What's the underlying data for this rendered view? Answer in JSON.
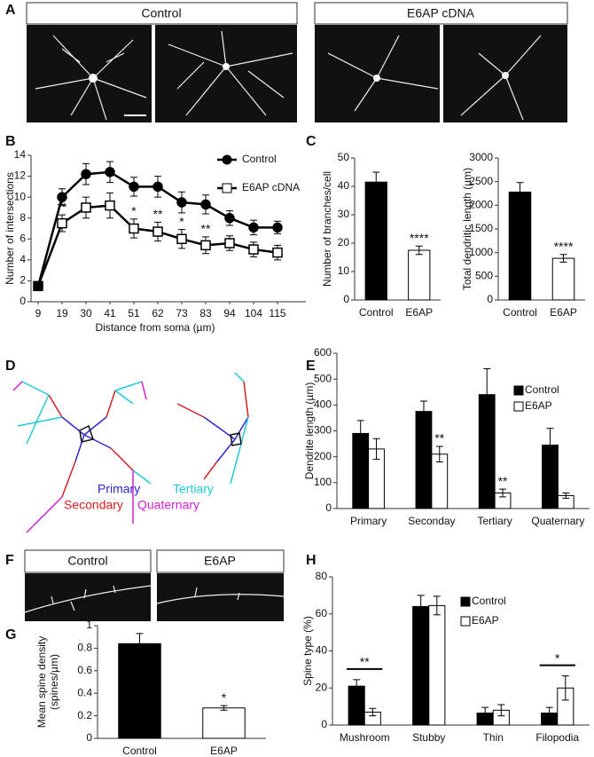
{
  "figure": {
    "panel_labels": [
      "A",
      "B",
      "C",
      "D",
      "E",
      "F",
      "G",
      "H"
    ],
    "a_headers": [
      "Control",
      "E6AP cDNA"
    ],
    "f_headers": [
      "Control",
      "E6AP"
    ],
    "d_legend": [
      {
        "label": "Primary",
        "color": "#2a2ad0"
      },
      {
        "label": "Tertiary",
        "color": "#20c8d8"
      },
      {
        "label": "Secondary",
        "color": "#d42020"
      },
      {
        "label": "Quaternary",
        "color": "#d020d0"
      }
    ]
  },
  "chart_data": [
    {
      "type": "line",
      "ylabel": "Number of intersections",
      "xlabel": "Distance from soma (µm)",
      "categories": [
        "9",
        "19",
        "30",
        "41",
        "51",
        "62",
        "73",
        "83",
        "94",
        "104",
        "115"
      ],
      "ylim": [
        0,
        14
      ],
      "yticks": [
        0,
        2,
        4,
        6,
        8,
        10,
        12,
        14
      ],
      "line_color": "#000000",
      "legend": true,
      "series": [
        {
          "name": "Control",
          "color": "#000000",
          "marker": "circle",
          "values": [
            1.5,
            10,
            12.2,
            12.4,
            11,
            11,
            9.5,
            9.3,
            8,
            7.1,
            7.1
          ],
          "errors": [
            0.4,
            0.8,
            1,
            1,
            0.9,
            1,
            1,
            0.9,
            0.7,
            0.7,
            0.6
          ],
          "significance": [
            null,
            null,
            null,
            null,
            null,
            null,
            null,
            null,
            null,
            null,
            null
          ]
        },
        {
          "name": "E6AP cDNA",
          "color": "#ffffff",
          "marker": "square",
          "values": [
            1.5,
            7.5,
            9,
            9.2,
            7,
            6.7,
            6,
            5.4,
            5.6,
            5,
            4.7
          ],
          "errors": [
            0.4,
            0.8,
            1,
            1.2,
            0.9,
            0.9,
            0.9,
            0.8,
            0.7,
            0.7,
            0.7
          ],
          "significance": [
            null,
            "**",
            null,
            null,
            "*",
            "**",
            "*",
            "**",
            null,
            null,
            null
          ]
        }
      ]
    },
    {
      "type": "bar",
      "ylabel": "Number of branches/cell",
      "categories": [
        "Control",
        "E6AP"
      ],
      "ylim": [
        0,
        50
      ],
      "yticks": [
        0,
        10,
        20,
        30,
        40,
        50
      ],
      "values": [
        41.5,
        17.5
      ],
      "errors": [
        3.5,
        1.5
      ],
      "colors": [
        "#000000",
        "#ffffff"
      ],
      "significance": [
        null,
        "****"
      ]
    },
    {
      "type": "bar",
      "ylabel": "Total dendritic length (µm)",
      "categories": [
        "Control",
        "E6AP"
      ],
      "ylim": [
        0,
        3000
      ],
      "yticks": [
        0,
        500,
        1000,
        1500,
        2000,
        2500,
        3000
      ],
      "values": [
        2280,
        880
      ],
      "errors": [
        200,
        80
      ],
      "colors": [
        "#000000",
        "#ffffff"
      ],
      "significance": [
        null,
        "****"
      ]
    },
    {
      "type": "bar",
      "ylabel": "Dendrite length (µm)",
      "categories": [
        "Primary",
        "Seconday",
        "Tertiary",
        "Quaternary"
      ],
      "ylim": [
        0,
        600
      ],
      "yticks": [
        0,
        100,
        200,
        300,
        400,
        500,
        600
      ],
      "legend": true,
      "series": [
        {
          "name": "Control",
          "color": "#000000",
          "values": [
            290,
            375,
            440,
            245
          ],
          "errors": [
            50,
            40,
            100,
            65
          ],
          "significance": [
            null,
            null,
            null,
            null
          ]
        },
        {
          "name": "E6AP",
          "color": "#ffffff",
          "values": [
            230,
            210,
            60,
            50
          ],
          "errors": [
            40,
            30,
            15,
            10
          ],
          "significance": [
            null,
            "**",
            "**",
            null
          ]
        }
      ]
    },
    {
      "type": "bar",
      "ylabel": [
        "Mean spine density",
        "(spines/µm)"
      ],
      "categories": [
        "Control",
        "E6AP"
      ],
      "ylim": [
        0,
        1
      ],
      "yticks": [
        0,
        0.2,
        0.4,
        0.6,
        0.8,
        1
      ],
      "values": [
        0.84,
        0.27
      ],
      "errors": [
        0.09,
        0.02
      ],
      "colors": [
        "#000000",
        "#ffffff"
      ],
      "significance": [
        null,
        "*"
      ]
    },
    {
      "type": "bar",
      "ylabel": "Spine type (%)",
      "categories": [
        "Mushroom",
        "Stubby",
        "Thin",
        "Filopodia"
      ],
      "ylim": [
        0,
        80
      ],
      "yticks": [
        0,
        20,
        40,
        60,
        80
      ],
      "legend": true,
      "group_significance": [
        "**",
        null,
        null,
        "*"
      ],
      "series": [
        {
          "name": "Control",
          "color": "#000000",
          "values": [
            21,
            64,
            6.5,
            6.5
          ],
          "errors": [
            3.5,
            6,
            3,
            3
          ]
        },
        {
          "name": "E6AP",
          "color": "#ffffff",
          "values": [
            7,
            64.5,
            8,
            20
          ],
          "errors": [
            2,
            5,
            3,
            6.5
          ]
        }
      ]
    }
  ]
}
